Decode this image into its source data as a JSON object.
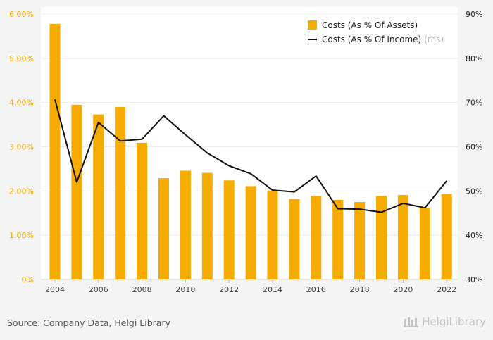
{
  "chart_data": {
    "type": "bar",
    "categories": [
      "2004",
      "2005",
      "2006",
      "2007",
      "2008",
      "2009",
      "2010",
      "2011",
      "2012",
      "2013",
      "2014",
      "2015",
      "2016",
      "2017",
      "2018",
      "2019",
      "2020",
      "2021",
      "2022"
    ],
    "x_tick_labels": [
      "2004",
      "2006",
      "2008",
      "2010",
      "2012",
      "2014",
      "2016",
      "2018",
      "2020",
      "2022"
    ],
    "series": [
      {
        "name": "Costs (As % Of Assets)",
        "type": "bar",
        "axis": "left",
        "color": "#f5ab00",
        "values": [
          5.78,
          3.95,
          3.73,
          3.9,
          3.09,
          2.29,
          2.46,
          2.41,
          2.24,
          2.11,
          2.01,
          1.82,
          1.89,
          1.8,
          1.75,
          1.89,
          1.91,
          1.62,
          1.94
        ]
      },
      {
        "name": "Costs (As % Of Income)",
        "name_suffix": "(rhs)",
        "type": "line",
        "axis": "right",
        "color": "#111111",
        "values": [
          70.7,
          52.0,
          65.5,
          61.3,
          61.7,
          67.0,
          62.7,
          58.6,
          55.7,
          53.9,
          50.2,
          49.8,
          53.4,
          46.0,
          45.9,
          45.2,
          47.2,
          46.2,
          52.3
        ]
      }
    ],
    "y_left": {
      "ylim": [
        0,
        6
      ],
      "ticks": [
        0,
        1,
        2,
        3,
        4,
        5,
        6
      ],
      "tick_labels": [
        "0%",
        "1.00%",
        "2.00%",
        "3.00%",
        "4.00%",
        "5.00%",
        "6.00%"
      ],
      "color": "#f5ab00"
    },
    "y_right": {
      "ylim": [
        30,
        90
      ],
      "ticks": [
        30,
        40,
        50,
        60,
        70,
        80,
        90
      ],
      "tick_labels": [
        "30%",
        "40%",
        "50%",
        "60%",
        "70%",
        "80%",
        "90%"
      ]
    },
    "grid": true,
    "legend_position": "top-right",
    "title": "",
    "xlabel": "",
    "ylabel": ""
  },
  "footer": {
    "source": "Source: Company Data, Helgi Library",
    "logo_text": "HelgiLibrary"
  }
}
